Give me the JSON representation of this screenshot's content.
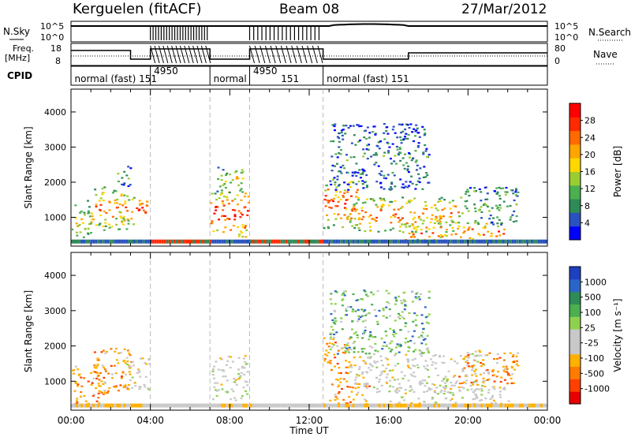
{
  "header": {
    "station": "Kerguelen (fitACF)",
    "beam": "Beam 08",
    "date": "27/Mar/2012"
  },
  "status_panel": {
    "nsky_label": "N.Sky",
    "nsky_ticks": [
      "10^5",
      "10^0"
    ],
    "nsearch_label": "N.Search",
    "nsearch_ticks": [
      "10^5",
      "10^0"
    ],
    "freq_label": "Freq.",
    "freq_unit": "[MHz]",
    "freq_ticks": [
      "18",
      "8"
    ],
    "nave_label": "Nave",
    "nave_ticks": [
      "80",
      "0"
    ],
    "cpid_label": "CPID",
    "cpid_segments": [
      {
        "label": "normal (fast)",
        "id": "151",
        "start": 0.0,
        "end": 4.0
      },
      {
        "label": "",
        "id": "4950",
        "start": 4.0,
        "end": 7.0
      },
      {
        "label": "normal",
        "id": "",
        "start": 7.0,
        "end": 9.0
      },
      {
        "label": "",
        "id": "4950",
        "start": 9.0,
        "end": 12.7
      },
      {
        "label": "normal (fast)",
        "id": "151",
        "start": 12.7,
        "end": 24.0
      }
    ],
    "cpid_texts": [
      {
        "text": "normal (fast)  151",
        "at": 0.1
      },
      {
        "text": "4950",
        "at": 4.1,
        "sub": true
      },
      {
        "text": "normal",
        "at": 7.1
      },
      {
        "text": "4950",
        "at": 9.1,
        "sub": true
      },
      {
        "text": "151",
        "at": 10.5
      },
      {
        "text": "normal (fast)  151",
        "at": 12.8
      }
    ]
  },
  "chart_data": [
    {
      "type": "heatmap",
      "panel": "power",
      "ylabel": "Slant Range [km]",
      "xlabel": "Time UT",
      "x_ticks": [
        "00:00",
        "04:00",
        "08:00",
        "12:00",
        "16:00",
        "20:00",
        "00:00"
      ],
      "x_range_hours": [
        0,
        24
      ],
      "y_ticks": [
        1000,
        2000,
        3000,
        4000
      ],
      "ylim": [
        180,
        4650
      ],
      "colorbar": {
        "label": "Power [dB]",
        "ticks": [
          4,
          8,
          12,
          16,
          20,
          24,
          28
        ],
        "range": [
          0,
          32
        ],
        "colors": [
          "#0000ff",
          "#2a52be",
          "#2e8b57",
          "#4caf50",
          "#9acd32",
          "#ffd700",
          "#ffa500",
          "#ff6a00",
          "#ff2a00",
          "#ff0000"
        ]
      },
      "mode_boundaries_hours": [
        4.0,
        7.0,
        9.0,
        12.7
      ],
      "regions": [
        {
          "t0": 0.0,
          "t1": 1.0,
          "r0": 350,
          "r1": 1500,
          "intensity": 0.55
        },
        {
          "t0": 1.0,
          "t1": 2.8,
          "r0": 650,
          "r1": 1900,
          "intensity": 0.7
        },
        {
          "t0": 2.5,
          "t1": 3.8,
          "r0": 800,
          "r1": 1650,
          "intensity": 0.85
        },
        {
          "t0": 2.3,
          "t1": 3.0,
          "r0": 1900,
          "r1": 2550,
          "intensity": 0.3
        },
        {
          "t0": 7.0,
          "t1": 8.9,
          "r0": 450,
          "r1": 1750,
          "intensity": 0.95
        },
        {
          "t0": 7.2,
          "t1": 8.7,
          "r0": 1700,
          "r1": 2500,
          "intensity": 0.5
        },
        {
          "t0": 12.7,
          "t1": 14.5,
          "r0": 700,
          "r1": 2100,
          "intensity": 0.85
        },
        {
          "t0": 14.0,
          "t1": 19.5,
          "r0": 600,
          "r1": 1600,
          "intensity": 0.75
        },
        {
          "t0": 16.5,
          "t1": 21.8,
          "r0": 300,
          "r1": 900,
          "intensity": 0.8
        },
        {
          "t0": 13.0,
          "t1": 18.0,
          "r0": 1800,
          "r1": 3700,
          "intensity": 0.25
        },
        {
          "t0": 19.5,
          "t1": 22.5,
          "r0": 800,
          "r1": 1900,
          "intensity": 0.4
        }
      ]
    },
    {
      "type": "heatmap",
      "panel": "velocity",
      "ylabel": "Slant Range [km]",
      "xlabel": "Time UT",
      "x_ticks": [
        "00:00",
        "04:00",
        "08:00",
        "12:00",
        "16:00",
        "20:00",
        "00:00"
      ],
      "x_range_hours": [
        0,
        24
      ],
      "y_ticks": [
        1000,
        2000,
        3000,
        4000
      ],
      "ylim": [
        180,
        4650
      ],
      "colorbar": {
        "label": "Velocity [m s⁻¹]",
        "ticks": [
          "1000",
          "500",
          "100",
          "25",
          "-25",
          "-100",
          "-500",
          "-1000"
        ],
        "colors": [
          "#1e3fbf",
          "#2a66c8",
          "#2e8b57",
          "#4caf50",
          "#8fd14f",
          "#c8c8c8",
          "#c8c8c8",
          "#ffb000",
          "#ff7a00",
          "#ff4000",
          "#e60000"
        ]
      },
      "mode_boundaries_hours": [
        4.0,
        7.0,
        9.0,
        12.7
      ],
      "regions": [
        {
          "t0": 0.0,
          "t1": 1.5,
          "r0": 350,
          "r1": 1500,
          "bias": "neg"
        },
        {
          "t0": 1.0,
          "t1": 3.0,
          "r0": 650,
          "r1": 2000,
          "bias": "neg"
        },
        {
          "t0": 2.7,
          "t1": 3.9,
          "r0": 700,
          "r1": 1700,
          "bias": "zero"
        },
        {
          "t0": 7.0,
          "t1": 8.9,
          "r0": 450,
          "r1": 1750,
          "bias": "zero"
        },
        {
          "t0": 12.7,
          "t1": 14.0,
          "r0": 1200,
          "r1": 2300,
          "bias": "neg"
        },
        {
          "t0": 13.0,
          "t1": 15.0,
          "r0": 350,
          "r1": 1100,
          "bias": "neg"
        },
        {
          "t0": 14.0,
          "t1": 21.0,
          "r0": 700,
          "r1": 1800,
          "bias": "zero"
        },
        {
          "t0": 16.0,
          "t1": 22.0,
          "r0": 300,
          "r1": 900,
          "bias": "zero"
        },
        {
          "t0": 13.0,
          "t1": 18.0,
          "r0": 1800,
          "r1": 3600,
          "bias": "pos"
        },
        {
          "t0": 19.5,
          "t1": 22.5,
          "r0": 900,
          "r1": 1900,
          "bias": "neg"
        }
      ]
    }
  ]
}
